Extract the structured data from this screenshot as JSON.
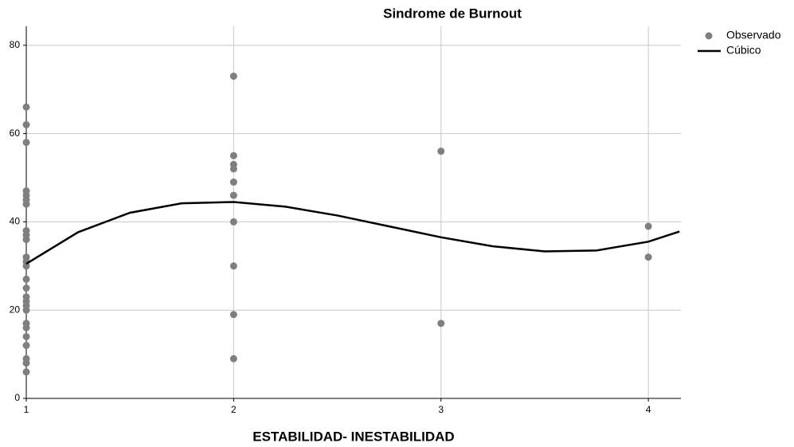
{
  "chart_data": {
    "type": "scatter",
    "title": "Sindrome de Burnout",
    "x_label": "ESTABILIDAD- INESTABILIDAD",
    "xlim": [
      1,
      4.157
    ],
    "xticks": [
      1,
      2,
      3,
      4
    ],
    "ylim": [
      0,
      84.3
    ],
    "yticks": [
      0,
      20,
      40,
      60,
      80
    ],
    "grid": true,
    "legend": "top-right",
    "series": [
      {
        "name": "Observado",
        "mark": "point",
        "color": "#7f7f7f",
        "x": [
          1,
          1,
          1,
          1,
          1,
          1,
          1,
          1,
          1,
          1,
          1,
          1,
          1,
          1,
          1,
          1,
          1,
          1,
          1,
          1,
          1,
          1,
          1,
          1,
          1,
          1,
          2,
          2,
          2,
          2,
          2,
          2,
          2,
          2,
          2,
          2,
          3,
          3,
          4,
          4
        ],
        "values": [
          66,
          62,
          58,
          47,
          46,
          45,
          44,
          38,
          37,
          36,
          32,
          31,
          30,
          27,
          25,
          23,
          22,
          21,
          20,
          17,
          16,
          14,
          12,
          9,
          8,
          6,
          73,
          55,
          53,
          52,
          49,
          46,
          40,
          30,
          19,
          9,
          56,
          17,
          39,
          32
        ]
      },
      {
        "name": "Cúbico",
        "mark": "line",
        "color": "#000000",
        "x": [
          1,
          1.25,
          1.5,
          1.75,
          2,
          2.25,
          2.5,
          2.75,
          3,
          3.25,
          3.5,
          3.75,
          4,
          4.15
        ],
        "values": [
          30.5,
          37.65,
          42.06,
          44.2,
          44.5,
          43.43,
          41.44,
          38.97,
          36.5,
          34.46,
          33.31,
          33.51,
          35.5,
          37.8
        ]
      }
    ]
  }
}
